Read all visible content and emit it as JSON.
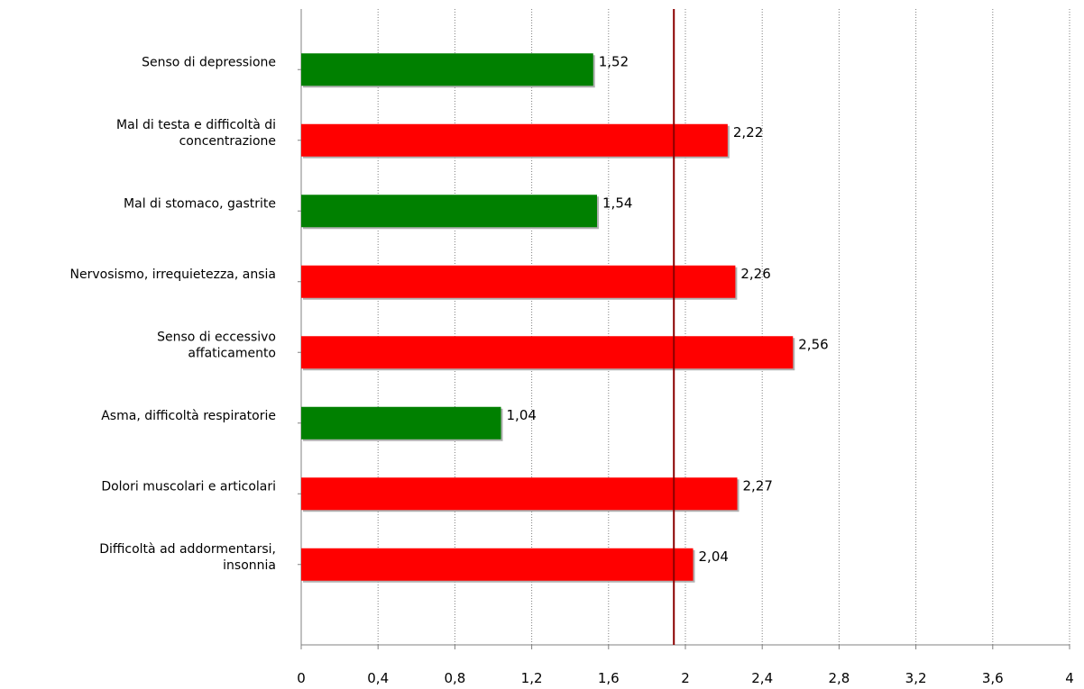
{
  "chart_data": {
    "type": "bar",
    "orientation": "horizontal",
    "categories": [
      "Senso di depressione",
      "Mal di testa e difficoltà di concentrazione",
      "Mal di stomaco, gastrite",
      "Nervosismo, irrequietezza, ansia",
      "Senso di eccessivo affaticamento",
      "Asma, difficoltà respiratorie",
      "Dolori muscolari e articolari",
      "Difficoltà ad addormentarsi, insonnia"
    ],
    "category_lines": [
      [
        "Senso di depressione"
      ],
      [
        "Mal di testa e difficoltà di",
        "concentrazione"
      ],
      [
        "Mal di stomaco, gastrite"
      ],
      [
        "Nervosismo, irrequietezza, ansia"
      ],
      [
        "Senso di eccessivo",
        "affaticamento"
      ],
      [
        "Asma, difficoltà respiratorie"
      ],
      [
        "Dolori muscolari e articolari"
      ],
      [
        "Difficoltà ad addormentarsi,",
        "insonnia"
      ]
    ],
    "values": [
      1.52,
      2.22,
      1.54,
      2.26,
      2.56,
      1.04,
      2.27,
      2.04
    ],
    "value_labels": [
      "1,52",
      "2,22",
      "1,54",
      "2,26",
      "2,56",
      "1,04",
      "2,27",
      "2,04"
    ],
    "bar_colors": [
      "#008000",
      "#ff0000",
      "#008000",
      "#ff0000",
      "#ff0000",
      "#008000",
      "#ff0000",
      "#ff0000"
    ],
    "xlim": [
      0,
      4
    ],
    "x_ticks": [
      0,
      0.4,
      0.8,
      1.2,
      1.6,
      2,
      2.4,
      2.8,
      3.2,
      3.6,
      4
    ],
    "x_tick_labels": [
      "0",
      "0,4",
      "0,8",
      "1,2",
      "1,6",
      "2",
      "2,4",
      "2,8",
      "3,2",
      "3,6",
      "4"
    ],
    "reference_line": 1.94,
    "reference_line_color": "#8b0000",
    "grid": "vertical-dotted",
    "title": "",
    "xlabel": "",
    "ylabel": ""
  }
}
